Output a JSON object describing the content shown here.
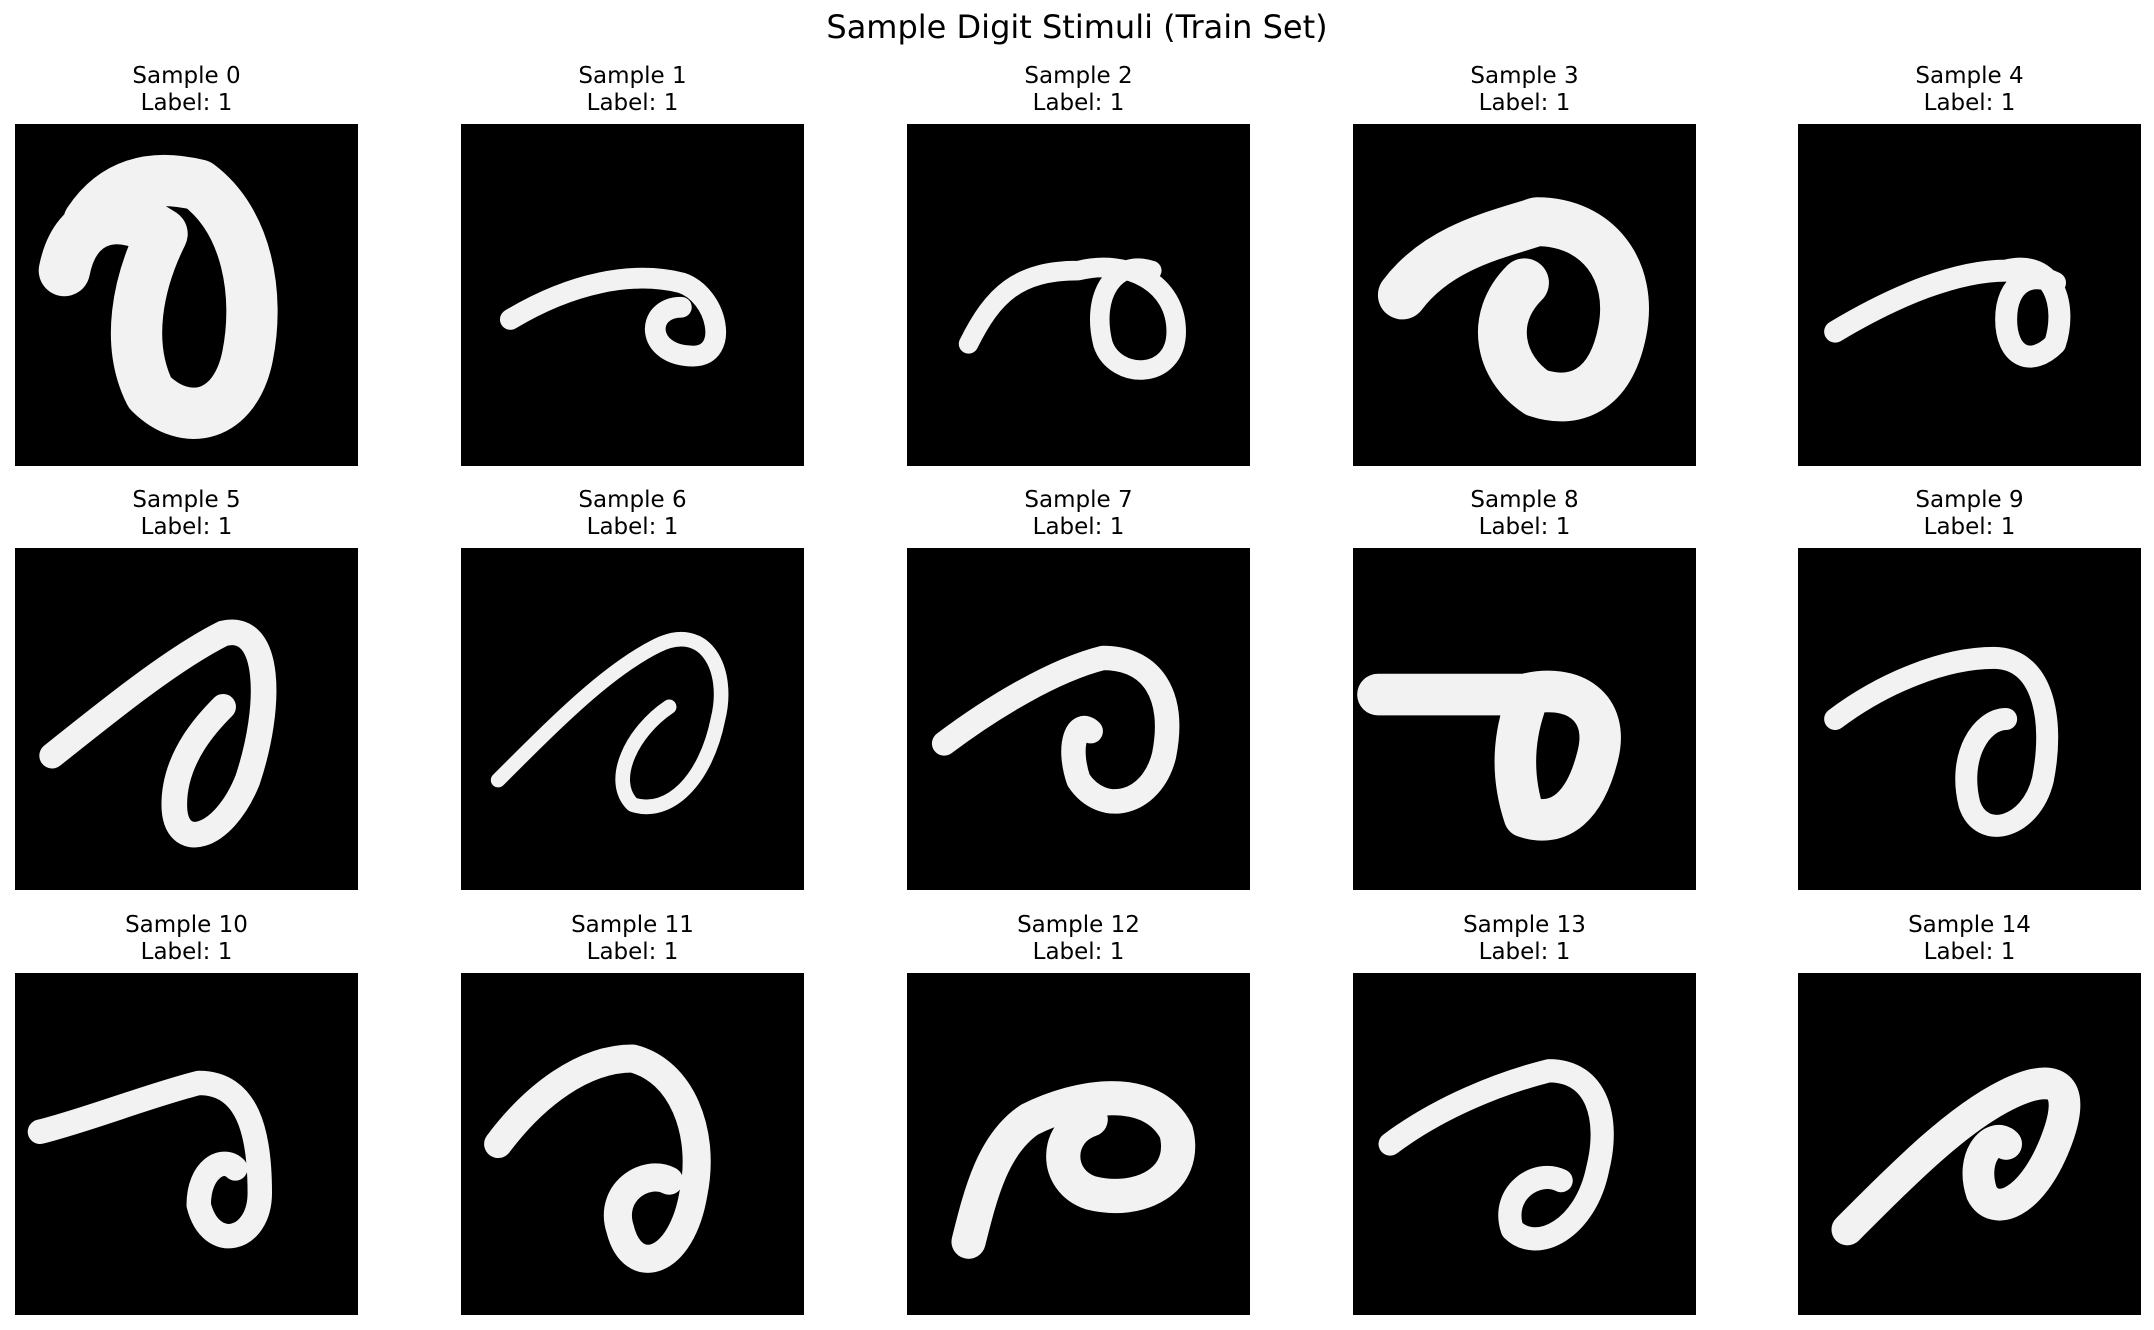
{
  "title": "Sample Digit Stimuli (Train Set)",
  "panels": [
    {
      "title": "Sample 0",
      "label": "Label: 1"
    },
    {
      "title": "Sample 1",
      "label": "Label: 1"
    },
    {
      "title": "Sample 2",
      "label": "Label: 1"
    },
    {
      "title": "Sample 3",
      "label": "Label: 1"
    },
    {
      "title": "Sample 4",
      "label": "Label: 1"
    },
    {
      "title": "Sample 5",
      "label": "Label: 1"
    },
    {
      "title": "Sample 6",
      "label": "Label: 1"
    },
    {
      "title": "Sample 7",
      "label": "Label: 1"
    },
    {
      "title": "Sample 8",
      "label": "Label: 1"
    },
    {
      "title": "Sample 9",
      "label": "Label: 1"
    },
    {
      "title": "Sample 10",
      "label": "Label: 1"
    },
    {
      "title": "Sample 11",
      "label": "Label: 1"
    },
    {
      "title": "Sample 12",
      "label": "Label: 1"
    },
    {
      "title": "Sample 13",
      "label": "Label: 1"
    },
    {
      "title": "Sample 14",
      "label": "Label: 1"
    }
  ]
}
